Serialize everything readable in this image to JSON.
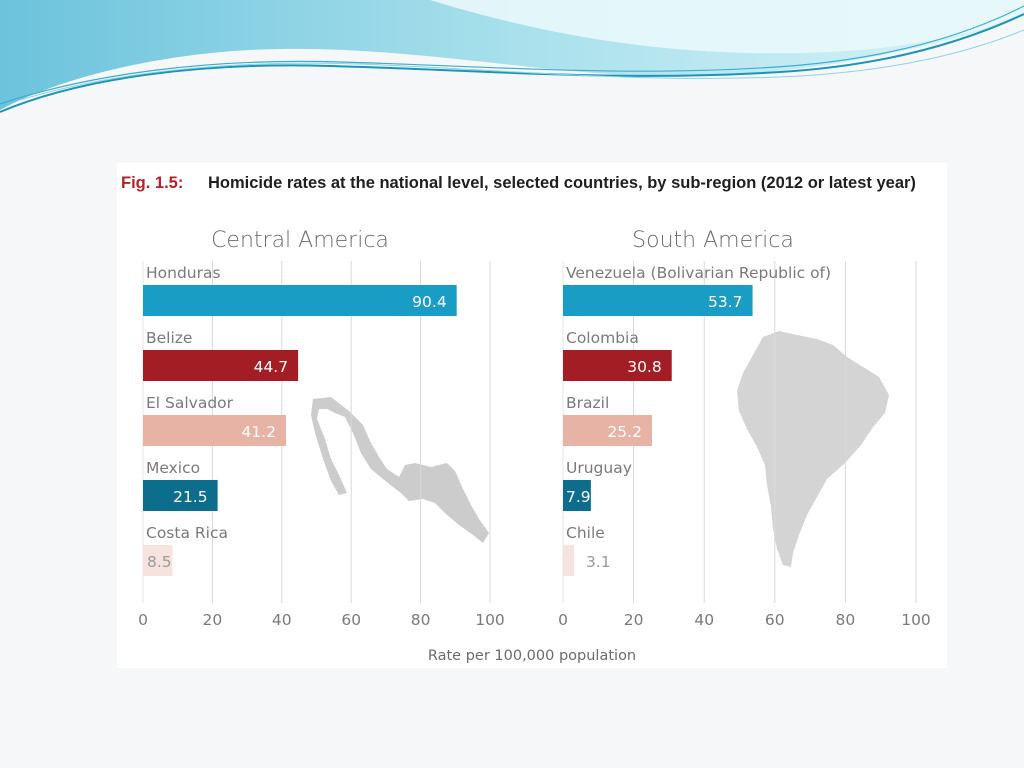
{
  "figure": {
    "number": "Fig. 1.5:",
    "title": "Homicide rates at the national level, selected countries, by sub-region (2012 or latest year)"
  },
  "colors": {
    "background": "#f5f7f8",
    "banner_light": "#d6f1f6",
    "banner_mid": "#7fcde0",
    "banner_dark": "#1c94b8",
    "bar_blue": "#1a9dc5",
    "bar_red": "#a31d24",
    "bar_salmon": "#e6b3a5",
    "bar_teal": "#0c6e8c",
    "bar_pink": "#f7e3de",
    "map": "#cccccc"
  },
  "chart_data": [
    {
      "type": "bar",
      "orientation": "horizontal",
      "title": "Central America",
      "categories": [
        "Honduras",
        "Belize",
        "El Salvador",
        "Mexico",
        "Costa Rica"
      ],
      "values": [
        90.4,
        44.7,
        41.2,
        21.5,
        8.5
      ],
      "value_labels": [
        "90.4",
        "44.7",
        "41.2",
        "21.5",
        "8.5"
      ],
      "bar_colors": [
        "#1a9dc5",
        "#a31d24",
        "#e6b3a5",
        "#0c6e8c",
        "#f7e3de"
      ],
      "xlim": [
        0,
        100
      ],
      "xticks": [
        "0",
        "20",
        "40",
        "60",
        "80",
        "100"
      ],
      "grid": true,
      "map": "mexico-central-america-map"
    },
    {
      "type": "bar",
      "orientation": "horizontal",
      "title": "South America",
      "categories": [
        "Venezuela (Bolivarian Republic of)",
        "Colombia",
        "Brazil",
        "Uruguay",
        "Chile"
      ],
      "values": [
        53.7,
        30.8,
        25.2,
        7.9,
        3.1
      ],
      "value_labels": [
        "53.7",
        "30.8",
        "25.2",
        "7.9",
        "3.1"
      ],
      "bar_colors": [
        "#1a9dc5",
        "#a31d24",
        "#e6b3a5",
        "#0c6e8c",
        "#f7e3de"
      ],
      "xlim": [
        0,
        100
      ],
      "xticks": [
        "0",
        "20",
        "40",
        "60",
        "80",
        "100"
      ],
      "grid": true,
      "map": "south-america-map"
    }
  ],
  "x_axis_title": "Rate per 100,000 population"
}
